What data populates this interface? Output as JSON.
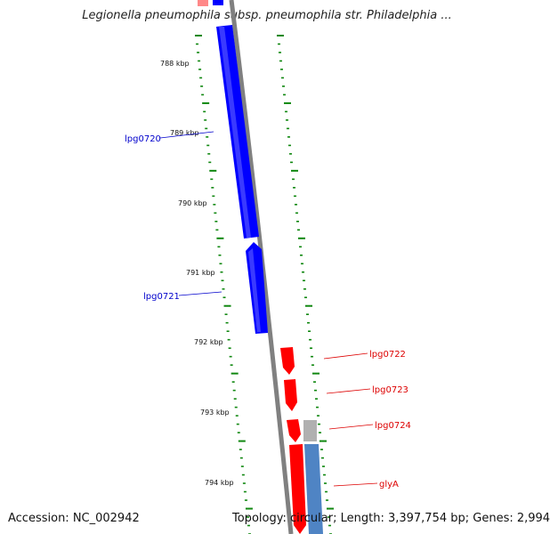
{
  "title": "Legionella pneumophila subsp. pneumophila str. Philadelphia ...",
  "footer": {
    "accession": "Accession: NC_002942",
    "topology": "Topology: circular; Length: 3,397,754 bp; Genes: 2,994"
  },
  "ruler_ticks": [
    "788 kbp",
    "789 kbp",
    "790 kbp",
    "791 kbp",
    "792 kbp",
    "793 kbp",
    "794 kbp"
  ],
  "genes": [
    {
      "label": "lpg0720",
      "strand": "reverse",
      "color": "#0000ff"
    },
    {
      "label": "lpg0721",
      "strand": "reverse",
      "color": "#0000ff"
    },
    {
      "label": "lpg0722",
      "strand": "forward",
      "color": "#ff0000"
    },
    {
      "label": "lpg0723",
      "strand": "forward",
      "color": "#ff0000"
    },
    {
      "label": "lpg0724",
      "strand": "forward",
      "color": "#ff0000"
    },
    {
      "label": "glyA",
      "strand": "forward",
      "color": "#ff0000"
    }
  ],
  "colors": {
    "reverse_cds": "#0000ff",
    "forward_cds": "#ff0000",
    "other_feature_gray": "#b0b0b0",
    "other_feature_blue": "#4f84c4",
    "backbone": "#808080",
    "ticks": "#118811"
  }
}
